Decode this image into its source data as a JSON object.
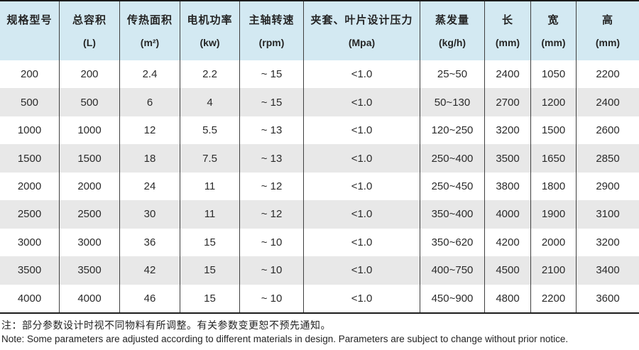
{
  "colors": {
    "header_bg": "#d3e9f2",
    "row_bg": "#ffffff",
    "row_alt_bg": "#e8e8e8",
    "grid_line": "#3f3f3f",
    "outer_border": "#1c1c1c",
    "text": "#2b2b2b"
  },
  "table": {
    "columns": [
      {
        "label": "规格型号",
        "unit": ""
      },
      {
        "label": "总容积",
        "unit": "(L)"
      },
      {
        "label": "传热面积",
        "unit": "(m²)"
      },
      {
        "label": "电机功率",
        "unit": "(kw)"
      },
      {
        "label": "主轴转速",
        "unit": "(rpm)"
      },
      {
        "label": "夹套、叶片设计压力",
        "unit": "(Mpa)"
      },
      {
        "label": "蒸发量",
        "unit": "(kg/h)"
      },
      {
        "label": "长",
        "unit": "(mm)"
      },
      {
        "label": "宽",
        "unit": "(mm)"
      },
      {
        "label": "高",
        "unit": "(mm)"
      }
    ],
    "rows": [
      [
        "200",
        "200",
        "2.4",
        "2.2",
        "~ 15",
        "<1.0",
        "25~50",
        "2400",
        "1050",
        "2200"
      ],
      [
        "500",
        "500",
        "6",
        "4",
        "~ 15",
        "<1.0",
        "50~130",
        "2700",
        "1200",
        "2400"
      ],
      [
        "1000",
        "1000",
        "12",
        "5.5",
        "~ 13",
        "<1.0",
        "120~250",
        "3200",
        "1500",
        "2600"
      ],
      [
        "1500",
        "1500",
        "18",
        "7.5",
        "~ 13",
        "<1.0",
        "250~400",
        "3500",
        "1650",
        "2850"
      ],
      [
        "2000",
        "2000",
        "24",
        "11",
        "~ 12",
        "<1.0",
        "250~450",
        "3800",
        "1800",
        "2900"
      ],
      [
        "2500",
        "2500",
        "30",
        "11",
        "~ 12",
        "<1.0",
        "350~400",
        "4000",
        "1900",
        "3100"
      ],
      [
        "3000",
        "3000",
        "36",
        "15",
        "~ 10",
        "<1.0",
        "350~620",
        "4200",
        "2000",
        "3200"
      ],
      [
        "3500",
        "3500",
        "42",
        "15",
        "~ 10",
        "<1.0",
        "400~750",
        "4500",
        "2100",
        "3400"
      ],
      [
        "4000",
        "4000",
        "46",
        "15",
        "~ 10",
        "<1.0",
        "450~900",
        "4800",
        "2200",
        "3600"
      ]
    ]
  },
  "notes": {
    "zh": "注：部分参数设计时视不同物料有所调整。有关参数变更恕不预先通知。",
    "en": "Note: Some parameters are adjusted according to different materials in design. Parameters are subject to change without prior notice."
  }
}
